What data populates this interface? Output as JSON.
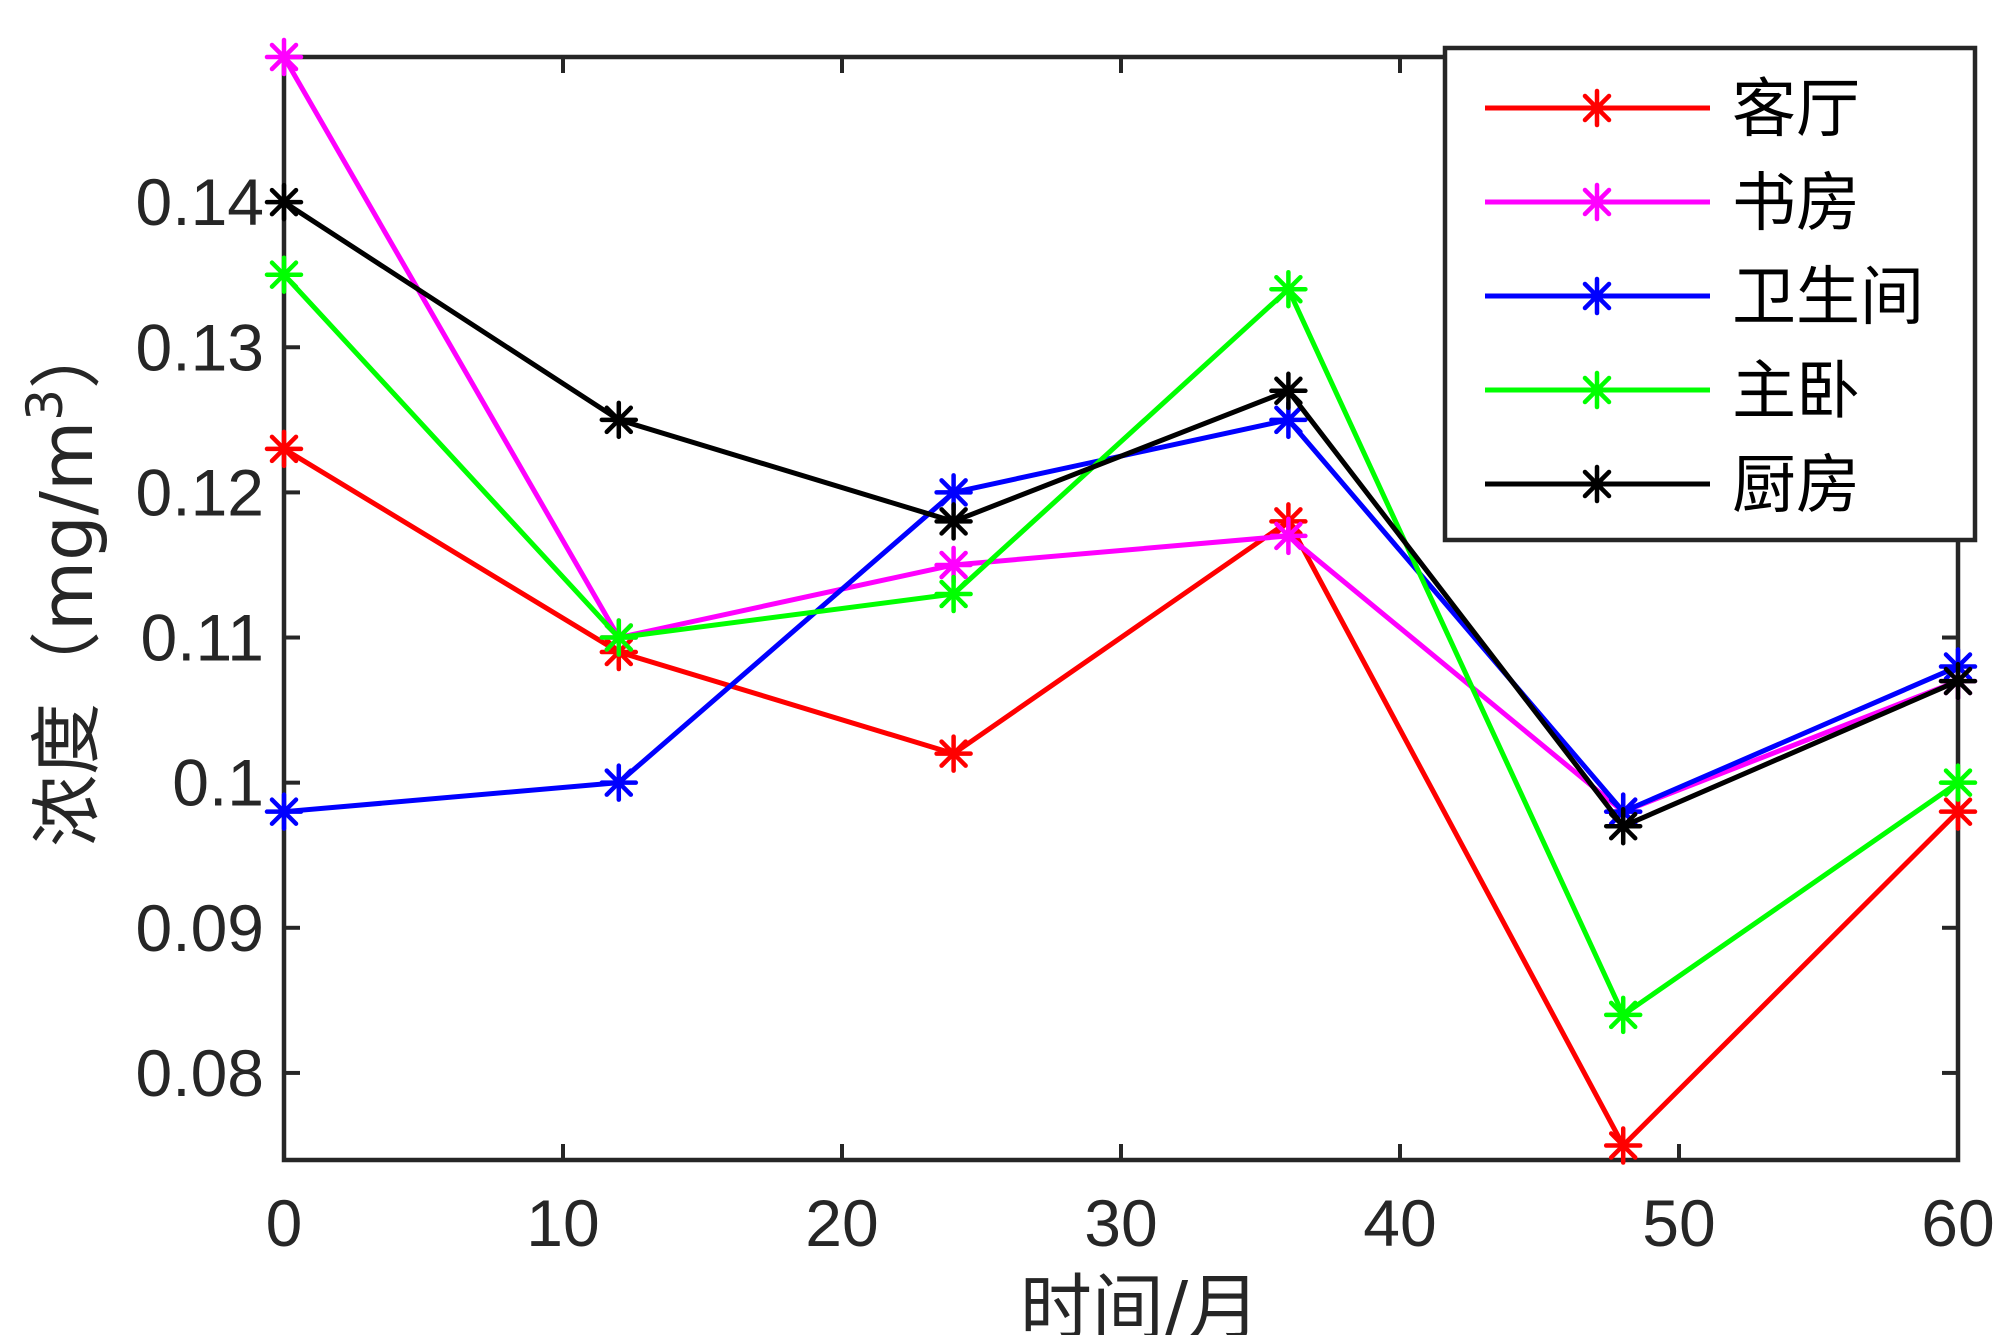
{
  "chart_data": {
    "type": "line",
    "x": [
      0,
      12,
      24,
      36,
      48,
      60
    ],
    "series": [
      {
        "name": "客厅",
        "color": "#ff0000",
        "values": [
          0.123,
          0.109,
          0.102,
          0.118,
          0.075,
          0.098
        ]
      },
      {
        "name": "书房",
        "color": "#ff00ff",
        "values": [
          0.15,
          0.11,
          0.115,
          0.117,
          0.098,
          0.107
        ]
      },
      {
        "name": "卫生间",
        "color": "#0000ff",
        "values": [
          0.098,
          0.1,
          0.12,
          0.125,
          0.098,
          0.108
        ]
      },
      {
        "name": "主卧",
        "color": "#00ff00",
        "values": [
          0.135,
          0.11,
          0.113,
          0.134,
          0.084,
          0.1
        ]
      },
      {
        "name": "厨房",
        "color": "#000000",
        "values": [
          0.14,
          0.125,
          0.118,
          0.127,
          0.097,
          0.107
        ]
      }
    ],
    "xlabel": "时间/月",
    "ylabel_prefix": "浓度（mg/m",
    "ylabel_sup": "3",
    "ylabel_suffix": "）",
    "xlim": [
      0,
      60
    ],
    "ylim": [
      0.074,
      0.15
    ],
    "xticks": [
      0,
      10,
      20,
      30,
      40,
      50,
      60
    ],
    "xtick_labels": [
      "0",
      "10",
      "20",
      "30",
      "40",
      "50",
      "60"
    ],
    "yticks": [
      0.08,
      0.09,
      0.1,
      0.11,
      0.12,
      0.13,
      0.14
    ],
    "ytick_labels": [
      "0.08",
      "0.09",
      "0.1",
      "0.11",
      "0.12",
      "0.13",
      "0.14"
    ],
    "grid": false,
    "marker": "asterisk",
    "legend_position": "top-right"
  }
}
